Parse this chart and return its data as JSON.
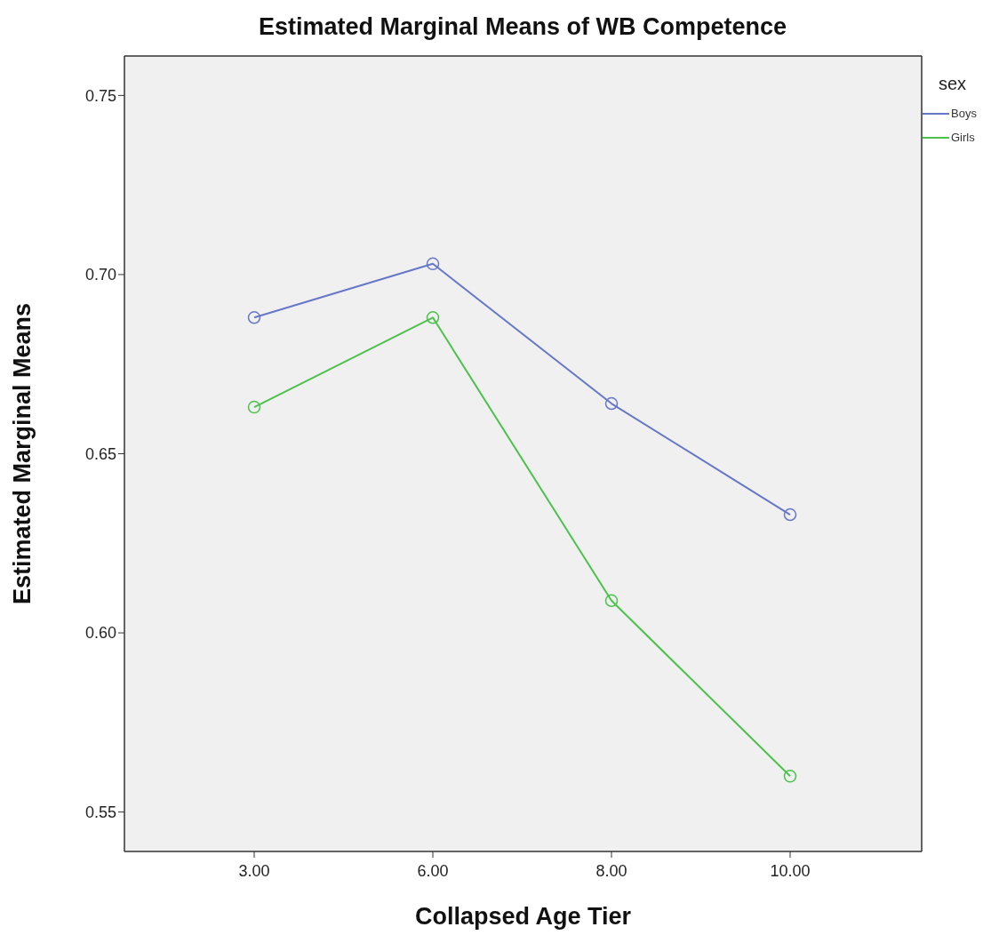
{
  "chart_data": {
    "type": "line",
    "title": "Estimated Marginal Means of WB Competence",
    "xlabel": "Collapsed Age Tier",
    "ylabel": "Estimated Marginal Means",
    "legend_title": "sex",
    "categories": [
      "3.00",
      "6.00",
      "8.00",
      "10.00"
    ],
    "series": [
      {
        "name": "Boys",
        "color": "#6677c8",
        "values": [
          0.688,
          0.703,
          0.664,
          0.633
        ]
      },
      {
        "name": "Girls",
        "color": "#4cc24c",
        "values": [
          0.663,
          0.688,
          0.609,
          0.56
        ]
      }
    ],
    "ylim": [
      0.539,
      0.761
    ],
    "yticks": [
      0.55,
      {
        "value": 0.6,
        "label": "0.60"
      },
      0.65,
      {
        "value": 0.7,
        "label": "0.70"
      },
      0.75
    ],
    "grid": false,
    "legend": "right",
    "marker": "circle",
    "line_style": "solid"
  }
}
